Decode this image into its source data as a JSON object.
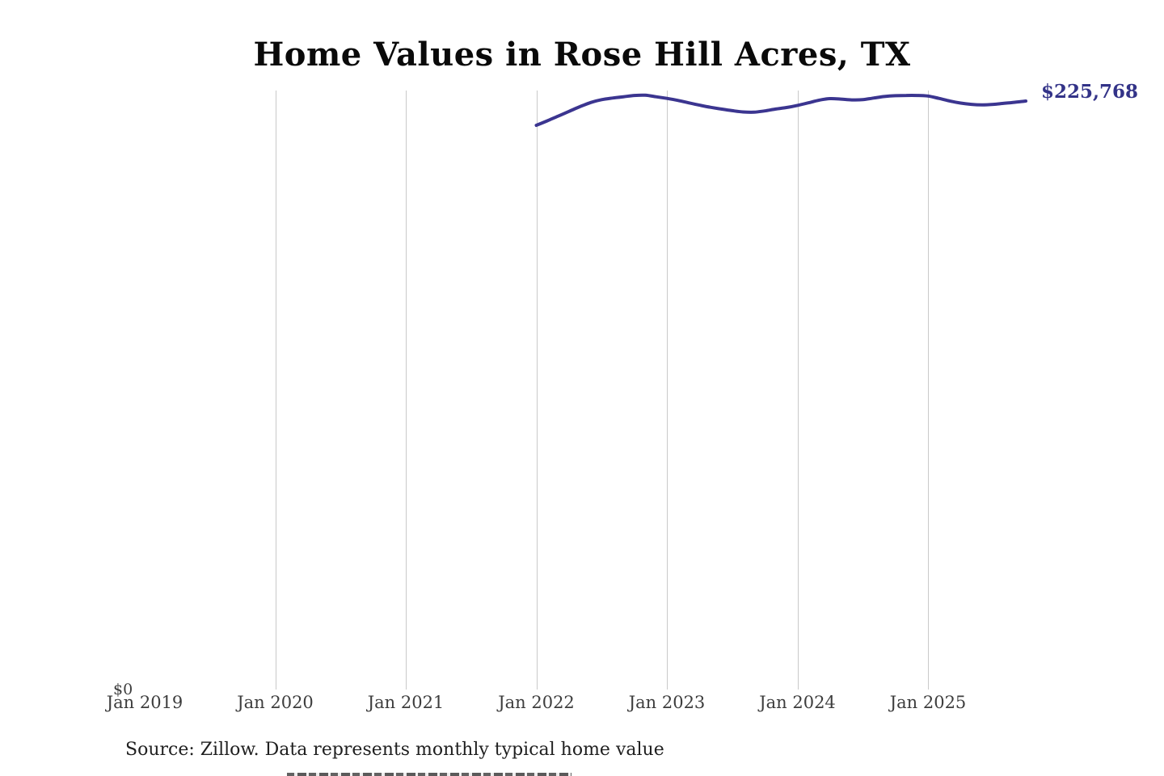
{
  "title": "Home Values in Rose Hill Acres, TX",
  "end_value_label": "$225,768",
  "y_axis": {
    "zero_label": "$0"
  },
  "x_axis": {
    "tick_labels": [
      "Jan 2019",
      "Jan 2020",
      "Jan 2021",
      "Jan 2022",
      "Jan 2023",
      "Jan 2024",
      "Jan 2025"
    ]
  },
  "source_note": "Source: Zillow. Data represents monthly typical home value",
  "colors": {
    "line": "#3b3590",
    "end_label": "#333388",
    "gridline": "#c9c9c9",
    "title_text": "#0a0a0a",
    "axis_text": "#3d3d3d",
    "source_text": "#1f1f1f",
    "background": "#ffffff"
  },
  "chart_data": {
    "type": "line",
    "title": "Home Values in Rose Hill Acres, TX",
    "xlabel": "",
    "ylabel": "",
    "series_name": "Monthly typical home value (USD)",
    "x_tick_labels": [
      "Jan 2019",
      "Jan 2020",
      "Jan 2021",
      "Jan 2022",
      "Jan 2023",
      "Jan 2024",
      "Jan 2025"
    ],
    "x_range_shown": [
      "2019-01",
      "2025-10"
    ],
    "ylim": [
      0,
      230000
    ],
    "grid": "vertical-only",
    "legend": "none",
    "end_annotation": "$225,768",
    "x": [
      "2022-01",
      "2022-02",
      "2022-03",
      "2022-04",
      "2022-05",
      "2022-06",
      "2022-07",
      "2022-08",
      "2022-09",
      "2022-10",
      "2022-11",
      "2022-12",
      "2023-01",
      "2023-02",
      "2023-03",
      "2023-04",
      "2023-05",
      "2023-06",
      "2023-07",
      "2023-08",
      "2023-09",
      "2023-10",
      "2023-11",
      "2023-12",
      "2024-01",
      "2024-02",
      "2024-03",
      "2024-04",
      "2024-05",
      "2024-06",
      "2024-07",
      "2024-08",
      "2024-09",
      "2024-10",
      "2024-11",
      "2024-12",
      "2025-01",
      "2025-02",
      "2025-03",
      "2025-04",
      "2025-05",
      "2025-06",
      "2025-07",
      "2025-08",
      "2025-09",
      "2025-10"
    ],
    "values": [
      216500,
      218200,
      220000,
      221800,
      223600,
      225200,
      226300,
      226900,
      227400,
      227900,
      228000,
      227400,
      226800,
      226000,
      225100,
      224200,
      223400,
      222700,
      222100,
      221600,
      221500,
      222000,
      222700,
      223300,
      224100,
      225100,
      226100,
      226700,
      226500,
      226200,
      226300,
      226900,
      227500,
      227800,
      227900,
      227900,
      227700,
      226800,
      225800,
      225000,
      224500,
      224300,
      224500,
      224900,
      225300,
      225768
    ]
  }
}
